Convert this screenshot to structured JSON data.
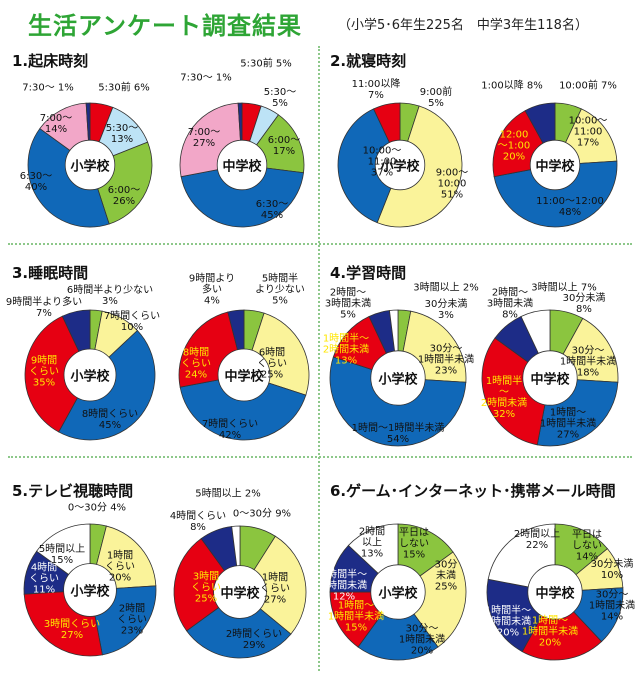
{
  "title": "生活アンケート調査結果",
  "subtitle": "（小学5･6年生225名　中学3年生118名）",
  "colors": {
    "title": "#2ea535",
    "red": "#e60012",
    "green": "#8bc53f",
    "yellow": "#faf39a",
    "blue": "#1068b8",
    "navy": "#1d2c87",
    "lightblue": "#bde3f6",
    "pink": "#f2a7c8",
    "white": "#ffffff"
  },
  "chart_data": [
    {
      "type": "pie",
      "panel": "p1",
      "title": "1.起床時刻",
      "pies": [
        {
          "center": "小学校",
          "slices": [
            {
              "label": "5:30前",
              "value": 6,
              "color": "red"
            },
            {
              "label": "5:30～",
              "value": 13,
              "color": "lightblue"
            },
            {
              "label": "6:00～",
              "value": 26,
              "color": "green"
            },
            {
              "label": "6:30～",
              "value": 40,
              "color": "blue"
            },
            {
              "label": "7:00～",
              "value": 14,
              "color": "pink"
            },
            {
              "label": "7:30～",
              "value": 1,
              "color": "navy"
            }
          ]
        },
        {
          "center": "中学校",
          "slices": [
            {
              "label": "5:30前",
              "value": 5,
              "color": "red"
            },
            {
              "label": "5:30～",
              "value": 5,
              "color": "lightblue"
            },
            {
              "label": "6:00～",
              "value": 17,
              "color": "green"
            },
            {
              "label": "6:30～",
              "value": 45,
              "color": "blue"
            },
            {
              "label": "7:00～",
              "value": 27,
              "color": "pink"
            },
            {
              "label": "7:30～",
              "value": 1,
              "color": "navy"
            }
          ]
        }
      ]
    },
    {
      "type": "pie",
      "panel": "p2",
      "title": "2.就寝時刻",
      "pies": [
        {
          "center": "小学校",
          "slices": [
            {
              "label": "9:00前",
              "value": 5,
              "color": "green"
            },
            {
              "label": "9:00～10:00",
              "value": 51,
              "color": "yellow"
            },
            {
              "label": "10:00～11:00",
              "value": 37,
              "color": "blue"
            },
            {
              "label": "11:00以降",
              "value": 7,
              "color": "red"
            }
          ]
        },
        {
          "center": "中学校",
          "slices": [
            {
              "label": "10:00前",
              "value": 7,
              "color": "green"
            },
            {
              "label": "10:00～11:00",
              "value": 17,
              "color": "yellow"
            },
            {
              "label": "11:00～12:00",
              "value": 48,
              "color": "blue"
            },
            {
              "label": "12:00～1:00",
              "value": 20,
              "color": "red"
            },
            {
              "label": "1:00以降",
              "value": 8,
              "color": "navy"
            }
          ]
        }
      ]
    },
    {
      "type": "pie",
      "panel": "p3",
      "title": "3.睡眠時間",
      "pies": [
        {
          "center": "小学校",
          "slices": [
            {
              "label": "6時間半より少ない",
              "value": 3,
              "color": "green"
            },
            {
              "label": "7時間くらい",
              "value": 10,
              "color": "yellow"
            },
            {
              "label": "8時間くらい",
              "value": 45,
              "color": "blue"
            },
            {
              "label": "9時間くらい",
              "value": 35,
              "color": "red"
            },
            {
              "label": "9時間半より多い",
              "value": 7,
              "color": "navy"
            }
          ]
        },
        {
          "center": "中学校",
          "slices": [
            {
              "label": "5時間半より少ない",
              "value": 5,
              "color": "green"
            },
            {
              "label": "6時間くらい",
              "value": 25,
              "color": "yellow"
            },
            {
              "label": "7時間くらい",
              "value": 42,
              "color": "blue"
            },
            {
              "label": "8時間くらい",
              "value": 24,
              "color": "red"
            },
            {
              "label": "9時間より多い",
              "value": 4,
              "color": "navy"
            }
          ]
        }
      ]
    },
    {
      "type": "pie",
      "panel": "p4",
      "title": "4.学習時間",
      "pies": [
        {
          "center": "小学校",
          "slices": [
            {
              "label": "30分未満",
              "value": 3,
              "color": "green"
            },
            {
              "label": "30分～1時間半未満",
              "value": 23,
              "color": "yellow"
            },
            {
              "label": "1時間～1時間半未満",
              "value": 54,
              "color": "blue"
            },
            {
              "label": "1時間半～2時間未満",
              "value": 13,
              "color": "red"
            },
            {
              "label": "2時間～3時間未満",
              "value": 5,
              "color": "navy"
            },
            {
              "label": "3時間以上",
              "value": 2,
              "color": "white"
            }
          ]
        },
        {
          "center": "中学校",
          "slices": [
            {
              "label": "30分未満",
              "value": 8,
              "color": "green"
            },
            {
              "label": "30分～1時間半未満",
              "value": 18,
              "color": "yellow"
            },
            {
              "label": "1時間～1時間半未満",
              "value": 27,
              "color": "blue"
            },
            {
              "label": "1時間半～2時間未満",
              "value": 32,
              "color": "red"
            },
            {
              "label": "2時間～3時間未満",
              "value": 8,
              "color": "navy"
            },
            {
              "label": "3時間以上",
              "value": 7,
              "color": "white"
            }
          ]
        }
      ]
    },
    {
      "type": "pie",
      "panel": "p5",
      "title": "5.テレビ視聴時間",
      "pies": [
        {
          "center": "小学校",
          "slices": [
            {
              "label": "0～30分",
              "value": 4,
              "color": "green"
            },
            {
              "label": "1時間くらい",
              "value": 20,
              "color": "yellow"
            },
            {
              "label": "2時間くらい",
              "value": 23,
              "color": "blue"
            },
            {
              "label": "3時間くらい",
              "value": 27,
              "color": "red"
            },
            {
              "label": "4時間くらい",
              "value": 11,
              "color": "navy"
            },
            {
              "label": "5時間以上",
              "value": 15,
              "color": "white"
            }
          ]
        },
        {
          "center": "中学校",
          "slices": [
            {
              "label": "0～30分",
              "value": 9,
              "color": "green"
            },
            {
              "label": "1時間くらい",
              "value": 27,
              "color": "yellow"
            },
            {
              "label": "2時間くらい",
              "value": 29,
              "color": "blue"
            },
            {
              "label": "3時間くらい",
              "value": 25,
              "color": "red"
            },
            {
              "label": "4時間くらい",
              "value": 8,
              "color": "navy"
            },
            {
              "label": "5時間以上",
              "value": 2,
              "color": "white"
            }
          ]
        }
      ]
    },
    {
      "type": "pie",
      "panel": "p6",
      "title": "6.ゲーム･インターネット･携帯メール時間",
      "pies": [
        {
          "center": "小学校",
          "slices": [
            {
              "label": "平日はしない",
              "value": 15,
              "color": "green"
            },
            {
              "label": "30分未満",
              "value": 25,
              "color": "yellow"
            },
            {
              "label": "30分～1時間未満",
              "value": 20,
              "color": "blue"
            },
            {
              "label": "1時間～1時間半未満",
              "value": 15,
              "color": "red"
            },
            {
              "label": "1時間半～2時間未満",
              "value": 12,
              "color": "navy"
            },
            {
              "label": "2時間以上",
              "value": 13,
              "color": "white"
            }
          ]
        },
        {
          "center": "中学校",
          "slices": [
            {
              "label": "平日はしない",
              "value": 14,
              "color": "green"
            },
            {
              "label": "30分未満",
              "value": 10,
              "color": "yellow"
            },
            {
              "label": "30分～1時間未満",
              "value": 14,
              "color": "blue"
            },
            {
              "label": "1時間～1時間半未満",
              "value": 20,
              "color": "red"
            },
            {
              "label": "1時間半～2時間未満",
              "value": 20,
              "color": "navy"
            },
            {
              "label": "2時間以上",
              "value": 22,
              "color": "white"
            }
          ]
        }
      ]
    }
  ],
  "labels": {
    "p1_0": [
      "5:30前 6%",
      "5:30～\n13%",
      "6:00～\n26%",
      "6:30～\n40%",
      "7:00～\n14%",
      "7:30～ 1%"
    ],
    "p1_1": [
      "5:30前 5%",
      "5:30～\n5%",
      "6:00～\n17%",
      "6:30～\n45%",
      "7:00～\n27%",
      "7:30～ 1%"
    ],
    "p2_0": [
      "9:00前\n5%",
      "9:00～\n10:00\n51%",
      "10:00～\n11:00\n37%",
      "11:00以降\n7%"
    ],
    "p2_1": [
      "10:00前 7%",
      "10:00～\n11:00\n17%",
      "11:00～12:00\n48%",
      "12:00\n～1:00\n20%",
      "1:00以降 8%"
    ],
    "p3_0": [
      "6時間半より少ない\n3%",
      "7時間くらい\n10%",
      "8時間くらい\n45%",
      "9時間\nくらい\n35%",
      "9時間半より多い\n7%"
    ],
    "p3_1": [
      "5時間半\nより少ない\n5%",
      "6時間\nくらい\n25%",
      "7時間くらい\n42%",
      "8時間\nくらい\n24%",
      "9時間より\n多い\n4%"
    ],
    "p4_0": [
      "30分未満\n3%",
      "30分～\n1時間半未満\n23%",
      "1時間～1時間半未満\n54%",
      "1時間半～\n2時間未満\n13%",
      "2時間～\n3時間未満\n5%",
      "3時間以上 2%"
    ],
    "p4_1": [
      "30分未満\n8%",
      "30分～\n1時間半未満\n18%",
      "1時間～\n1時間半未満\n27%",
      "1時間半\n～\n2時間未満\n32%",
      "2時間～\n3時間未満\n8%",
      "3時間以上 7%"
    ],
    "p5_0": [
      "0～30分 4%",
      "1時間\nくらい\n20%",
      "2時間\nくらい\n23%",
      "3時間くらい\n27%",
      "4時間\nくらい\n11%",
      "5時間以上\n15%"
    ],
    "p5_1": [
      "0～30分 9%",
      "1時間\nくらい\n27%",
      "2時間くらい\n29%",
      "3時間\nくらい\n25%",
      "4時間くらい\n8%",
      "5時間以上 2%"
    ],
    "p6_0": [
      "平日は\nしない\n15%",
      "30分\n未満\n25%",
      "30分～\n1時間未満\n20%",
      "1時間～\n1時間半未満\n15%",
      "1時間半～\n2時間未満\n12%",
      "2時間\n以上\n13%"
    ],
    "p6_1": [
      "平日は\nしない\n14%",
      "30分未満\n10%",
      "30分～\n1時間未満\n14%",
      "1時間～\n1時間半未満\n20%",
      "1時間半～\n2時間未満\n20%",
      "2時間以上\n22%"
    ]
  }
}
